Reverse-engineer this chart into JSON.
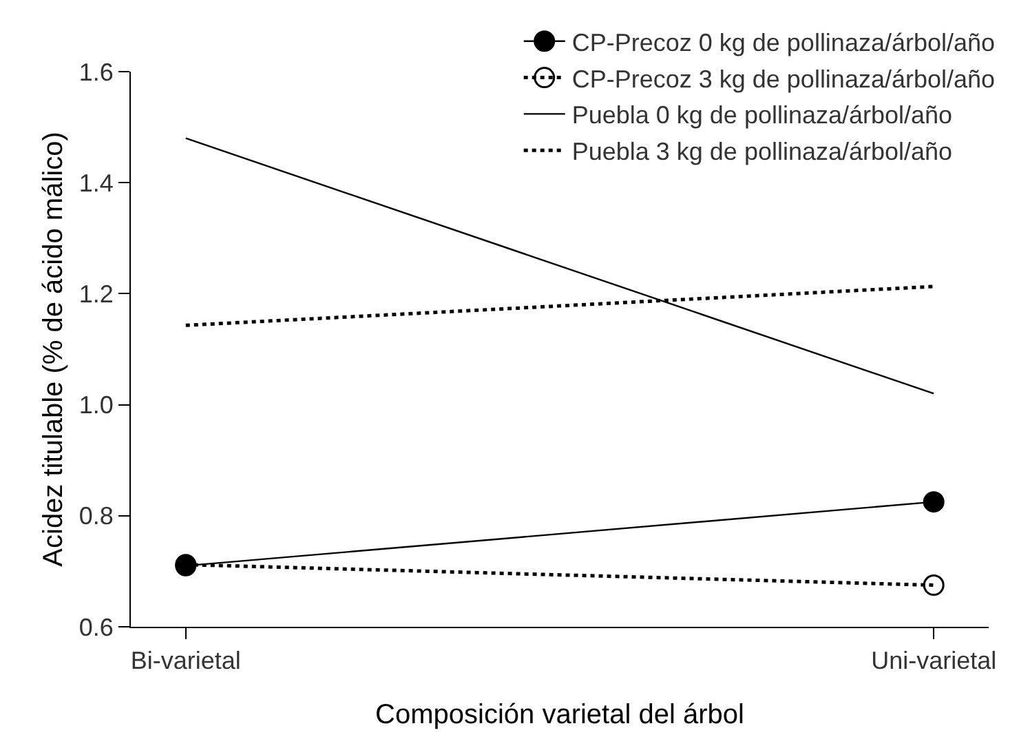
{
  "chart_data": {
    "type": "line",
    "xlabel": "Composición varietal del árbol",
    "ylabel": "Acidez titulable (% de ácido málico)",
    "categories": [
      "Bi-varietal",
      "Uni-varietal"
    ],
    "ylim": [
      0.6,
      1.6
    ],
    "yticks": [
      {
        "value": 0.6,
        "label": "0.6"
      },
      {
        "value": 0.8,
        "label": "0.8"
      },
      {
        "value": 1.0,
        "label": "1.0"
      },
      {
        "value": 1.2,
        "label": "1.2"
      },
      {
        "value": 1.4,
        "label": "1.4"
      },
      {
        "value": 1.6,
        "label": "1.6"
      }
    ],
    "grid": false,
    "legend": "top right",
    "series": [
      {
        "name": "CP-Precoz 0 kg de pollinaza/árbol/año",
        "color": "#000000",
        "values": [
          0.71,
          0.825
        ],
        "marker": "circle",
        "line_style": "solid"
      },
      {
        "name": "CP-Precoz 3 kg de pollinaza/árbol/año",
        "color": "#000000",
        "values": [
          0.712,
          0.675
        ],
        "marker": "circle",
        "line_style": "dotted"
      },
      {
        "name": "Puebla 0 kg de pollinaza/árbol/año",
        "color": "#000000",
        "values": [
          1.48,
          1.02
        ],
        "marker": "none",
        "line_style": "solid"
      },
      {
        "name": "Puebla 3 kg de pollinaza/árbol/año",
        "color": "#000000",
        "values": [
          1.143,
          1.213
        ],
        "marker": "none",
        "line_style": "dotted"
      }
    ]
  }
}
